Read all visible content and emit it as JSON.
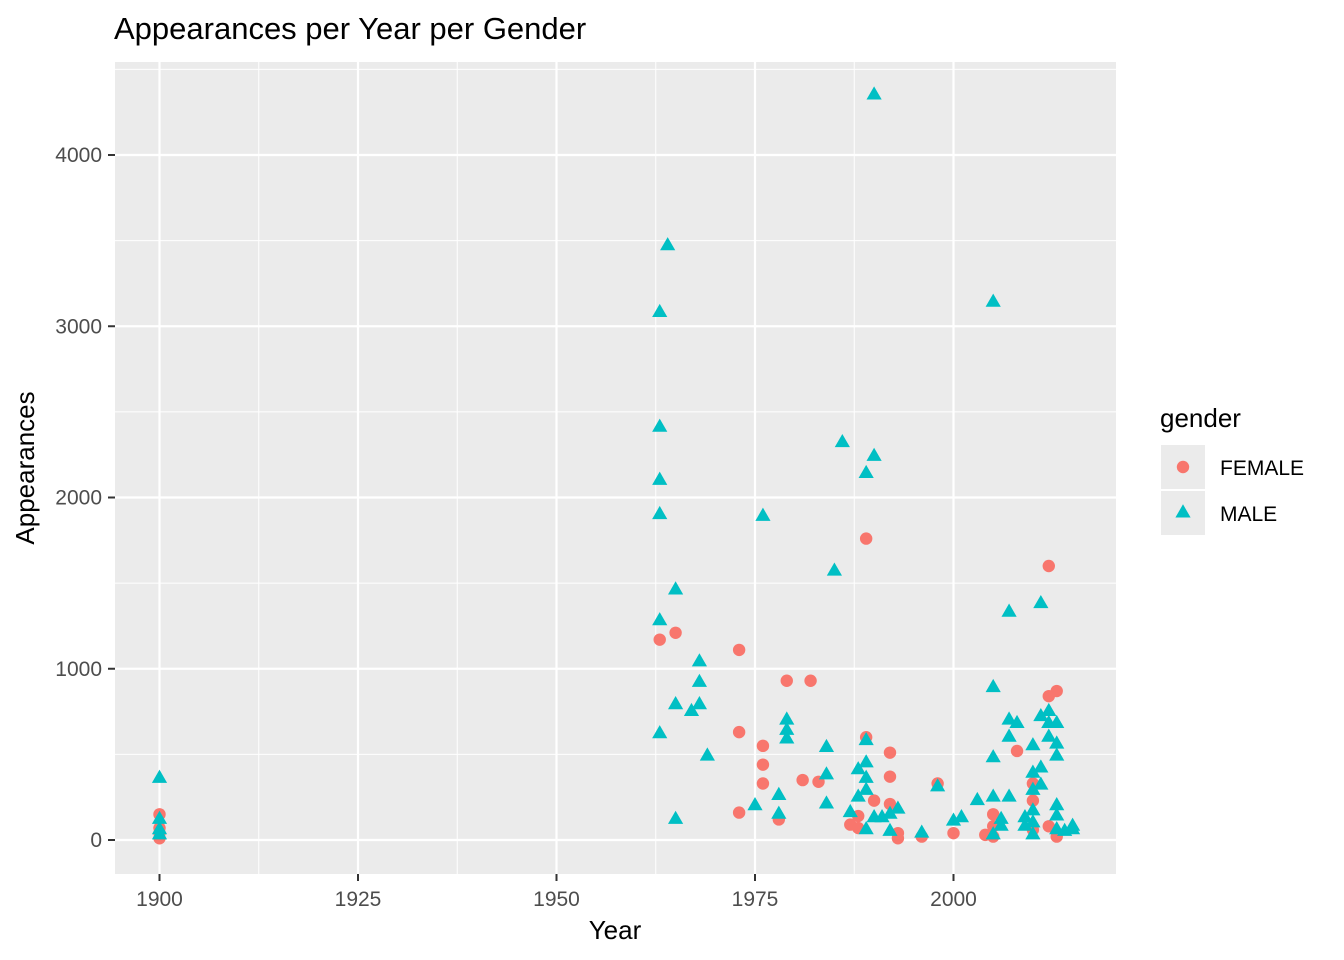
{
  "chart_data": {
    "type": "scatter",
    "title": "Appearances per Year per Gender",
    "xlabel": "Year",
    "ylabel": "Appearances",
    "xlim": [
      1894.2,
      1916.0
    ],
    "ylim": [
      -200,
      4550
    ],
    "x_ticks": [
      1900,
      1925,
      1950,
      1975,
      2000
    ],
    "y_ticks": [
      0,
      1000,
      2000,
      3000,
      4000
    ],
    "grid": true,
    "legend": {
      "title": "gender",
      "placement": "right",
      "entries": [
        {
          "label": "FEMALE",
          "color": "#F8766D",
          "shape": "circle"
        },
        {
          "label": "MALE",
          "color": "#00BFC4",
          "shape": "triangle"
        }
      ]
    },
    "series": [
      {
        "name": "FEMALE",
        "color": "#F8766D",
        "shape": "circle",
        "points": [
          [
            1900,
            150
          ],
          [
            1900,
            70
          ],
          [
            1900,
            10
          ],
          [
            1900,
            40
          ],
          [
            1963,
            1170
          ],
          [
            1965,
            1210
          ],
          [
            1973,
            1110
          ],
          [
            1973,
            630
          ],
          [
            1973,
            160
          ],
          [
            1976,
            550
          ],
          [
            1976,
            440
          ],
          [
            1976,
            330
          ],
          [
            1978,
            120
          ],
          [
            1979,
            930
          ],
          [
            1981,
            350
          ],
          [
            1982,
            930
          ],
          [
            1983,
            340
          ],
          [
            1987,
            90
          ],
          [
            1988,
            140
          ],
          [
            1988,
            70
          ],
          [
            1989,
            1760
          ],
          [
            1989,
            600
          ],
          [
            1990,
            230
          ],
          [
            1992,
            510
          ],
          [
            1992,
            370
          ],
          [
            1992,
            210
          ],
          [
            1993,
            40
          ],
          [
            1993,
            10
          ],
          [
            1996,
            20
          ],
          [
            1998,
            330
          ],
          [
            2000,
            40
          ],
          [
            2004,
            30
          ],
          [
            2005,
            150
          ],
          [
            2005,
            80
          ],
          [
            2005,
            20
          ],
          [
            2008,
            520
          ],
          [
            2010,
            330
          ],
          [
            2010,
            230
          ],
          [
            2010,
            60
          ],
          [
            2012,
            1600
          ],
          [
            2012,
            840
          ],
          [
            2012,
            80
          ],
          [
            2013,
            870
          ],
          [
            2013,
            20
          ]
        ]
      },
      {
        "name": "MALE",
        "color": "#00BFC4",
        "shape": "triangle",
        "points": [
          [
            1900,
            360
          ],
          [
            1900,
            120
          ],
          [
            1900,
            60
          ],
          [
            1900,
            30
          ],
          [
            1963,
            3080
          ],
          [
            1963,
            2410
          ],
          [
            1963,
            2100
          ],
          [
            1963,
            1900
          ],
          [
            1963,
            1280
          ],
          [
            1963,
            620
          ],
          [
            1964,
            3470
          ],
          [
            1965,
            1460
          ],
          [
            1965,
            790
          ],
          [
            1965,
            120
          ],
          [
            1967,
            750
          ],
          [
            1968,
            1040
          ],
          [
            1968,
            920
          ],
          [
            1968,
            790
          ],
          [
            1969,
            490
          ],
          [
            1975,
            200
          ],
          [
            1976,
            1890
          ],
          [
            1978,
            260
          ],
          [
            1978,
            150
          ],
          [
            1979,
            700
          ],
          [
            1979,
            640
          ],
          [
            1979,
            590
          ],
          [
            1984,
            540
          ],
          [
            1984,
            380
          ],
          [
            1984,
            210
          ],
          [
            1985,
            1570
          ],
          [
            1986,
            2320
          ],
          [
            1987,
            160
          ],
          [
            1988,
            410
          ],
          [
            1988,
            250
          ],
          [
            1989,
            2140
          ],
          [
            1989,
            580
          ],
          [
            1989,
            450
          ],
          [
            1989,
            360
          ],
          [
            1989,
            290
          ],
          [
            1989,
            60
          ],
          [
            1990,
            4350
          ],
          [
            1990,
            2240
          ],
          [
            1990,
            130
          ],
          [
            1991,
            130
          ],
          [
            1992,
            150
          ],
          [
            1992,
            50
          ],
          [
            1993,
            180
          ],
          [
            1996,
            40
          ],
          [
            1998,
            310
          ],
          [
            2000,
            110
          ],
          [
            2001,
            130
          ],
          [
            2003,
            230
          ],
          [
            2005,
            3140
          ],
          [
            2005,
            890
          ],
          [
            2005,
            480
          ],
          [
            2005,
            250
          ],
          [
            2005,
            30
          ],
          [
            2006,
            120
          ],
          [
            2006,
            80
          ],
          [
            2007,
            1330
          ],
          [
            2007,
            700
          ],
          [
            2007,
            600
          ],
          [
            2007,
            250
          ],
          [
            2008,
            680
          ],
          [
            2009,
            130
          ],
          [
            2009,
            80
          ],
          [
            2010,
            550
          ],
          [
            2010,
            390
          ],
          [
            2010,
            290
          ],
          [
            2010,
            170
          ],
          [
            2010,
            100
          ],
          [
            2010,
            30
          ],
          [
            2011,
            1380
          ],
          [
            2011,
            720
          ],
          [
            2011,
            420
          ],
          [
            2011,
            320
          ],
          [
            2012,
            750
          ],
          [
            2012,
            680
          ],
          [
            2012,
            600
          ],
          [
            2013,
            680
          ],
          [
            2013,
            560
          ],
          [
            2013,
            490
          ],
          [
            2013,
            200
          ],
          [
            2013,
            140
          ],
          [
            2013,
            60
          ],
          [
            2014,
            50
          ],
          [
            2015,
            80
          ],
          [
            2015,
            60
          ]
        ]
      }
    ]
  }
}
